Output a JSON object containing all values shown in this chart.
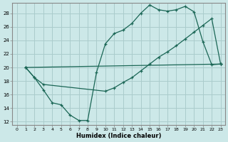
{
  "background_color": "#cce8e8",
  "grid_color": "#aacccc",
  "line_color": "#1a6655",
  "xlabel": "Humidex (Indice chaleur)",
  "xlim": [
    -0.5,
    23.5
  ],
  "ylim": [
    11.5,
    29.5
  ],
  "yticks": [
    12,
    14,
    16,
    18,
    20,
    22,
    24,
    26,
    28
  ],
  "xticks": [
    0,
    1,
    2,
    3,
    4,
    5,
    6,
    7,
    8,
    9,
    10,
    11,
    12,
    13,
    14,
    15,
    16,
    17,
    18,
    19,
    20,
    21,
    22,
    23
  ],
  "curve1_x": [
    1,
    2,
    3,
    4,
    5,
    6,
    7,
    8,
    9,
    10,
    11,
    12,
    13,
    14,
    15,
    16,
    17,
    18,
    19,
    20,
    21,
    22,
    23
  ],
  "curve1_y": [
    20.0,
    18.5,
    16.7,
    14.8,
    14.5,
    13.0,
    12.2,
    12.2,
    19.3,
    23.5,
    25.0,
    25.5,
    26.5,
    28.0,
    29.2,
    28.5,
    28.3,
    28.5,
    29.0,
    28.2,
    23.8,
    20.4,
    20.5
  ],
  "curve2_x": [
    1,
    2,
    3,
    10,
    11,
    12,
    13,
    14,
    15,
    16,
    17,
    18,
    19,
    20,
    21,
    22,
    23
  ],
  "curve2_y": [
    20.0,
    18.5,
    17.5,
    16.5,
    17.0,
    17.8,
    18.5,
    19.5,
    20.5,
    21.5,
    22.3,
    23.2,
    24.2,
    25.2,
    26.2,
    27.2,
    20.5
  ],
  "curve3_x": [
    1,
    23
  ],
  "curve3_y": [
    20.0,
    20.5
  ]
}
